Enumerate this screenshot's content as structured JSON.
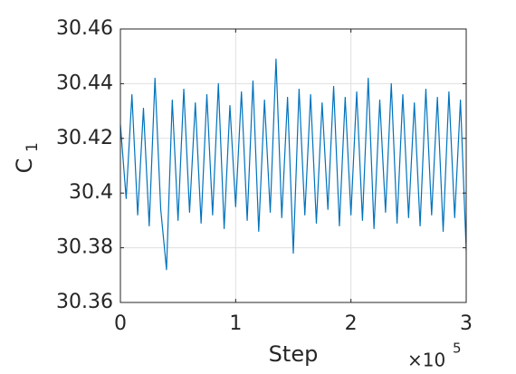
{
  "chart_data": {
    "type": "line",
    "xlabel": "Step",
    "x_multiplier": "×10",
    "x_multiplier_exponent": "5",
    "ylabel": "C",
    "ylabel_subscript": "1",
    "xlim": [
      0,
      300000
    ],
    "xticks": [
      0,
      {
        "value": 100000,
        "label": "1"
      },
      {
        "value": 200000,
        "label": "2"
      },
      {
        "value": 300000,
        "label": "3"
      }
    ],
    "ylim": [
      30.36,
      30.46
    ],
    "yticks": [
      30.36,
      30.38,
      30.4,
      30.42,
      30.44,
      30.46
    ],
    "grid": true,
    "x": [
      0,
      5000,
      10000,
      15000,
      20000,
      25000,
      30000,
      35000,
      40000,
      45000,
      50000,
      55000,
      60000,
      65000,
      70000,
      75000,
      80000,
      85000,
      90000,
      95000,
      100000,
      105000,
      110000,
      115000,
      120000,
      125000,
      130000,
      135000,
      140000,
      145000,
      150000,
      155000,
      160000,
      165000,
      170000,
      175000,
      180000,
      185000,
      190000,
      195000,
      200000,
      205000,
      210000,
      215000,
      220000,
      225000,
      230000,
      235000,
      240000,
      245000,
      250000,
      255000,
      260000,
      265000,
      270000,
      275000,
      280000,
      285000,
      290000,
      295000,
      300000
    ],
    "series": [
      {
        "color": "#0072bd",
        "values": [
          30.425,
          30.398,
          30.436,
          30.392,
          30.431,
          30.388,
          30.442,
          30.394,
          30.372,
          30.434,
          30.39,
          30.438,
          30.393,
          30.433,
          30.389,
          30.436,
          30.392,
          30.44,
          30.387,
          30.432,
          30.395,
          30.437,
          30.39,
          30.441,
          30.386,
          30.434,
          30.393,
          30.449,
          30.391,
          30.435,
          30.378,
          30.438,
          30.392,
          30.436,
          30.389,
          30.433,
          30.394,
          30.439,
          30.388,
          30.435,
          30.392,
          30.437,
          30.39,
          30.442,
          30.387,
          30.434,
          30.393,
          30.44,
          30.389,
          30.436,
          30.391,
          30.433,
          30.388,
          30.438,
          30.392,
          30.435,
          30.386,
          30.437,
          30.391,
          30.434,
          30.379
        ]
      }
    ]
  }
}
